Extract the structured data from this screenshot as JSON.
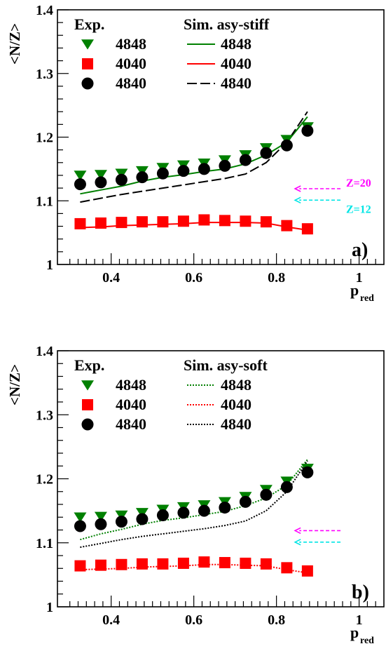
{
  "chart_data": [
    {
      "panel_label": "a)",
      "type": "scatter",
      "xlabel": "p",
      "xlabel_sub": "red",
      "ylabel": "<N/Z>",
      "xlim": [
        0.27,
        1.06
      ],
      "ylim": [
        1.0,
        1.4
      ],
      "xticks": [
        "0.4",
        "0.6",
        "0.8",
        "1"
      ],
      "yticks": [
        "1",
        "1.1",
        "1.2",
        "1.3",
        "1.4"
      ],
      "legend_exp_header": "Exp.",
      "legend_sim_header": "Sim. asy-stiff",
      "exp_series": [
        {
          "name": "4848",
          "color": "#008000",
          "marker": "triangle-down",
          "x": [
            0.325,
            0.375,
            0.425,
            0.475,
            0.525,
            0.575,
            0.625,
            0.675,
            0.725,
            0.775,
            0.825,
            0.875
          ],
          "y": [
            1.14,
            1.141,
            1.143,
            1.147,
            1.152,
            1.156,
            1.159,
            1.164,
            1.172,
            1.183,
            1.196,
            1.216
          ]
        },
        {
          "name": "4040",
          "color": "#ff0000",
          "marker": "square",
          "x": [
            0.325,
            0.375,
            0.425,
            0.475,
            0.525,
            0.575,
            0.625,
            0.675,
            0.725,
            0.775,
            0.825,
            0.875
          ],
          "y": [
            1.064,
            1.065,
            1.066,
            1.067,
            1.067,
            1.068,
            1.07,
            1.069,
            1.068,
            1.067,
            1.061,
            1.056
          ]
        },
        {
          "name": "4840",
          "color": "#000000",
          "marker": "circle",
          "x": [
            0.325,
            0.375,
            0.425,
            0.475,
            0.525,
            0.575,
            0.625,
            0.675,
            0.725,
            0.775,
            0.825,
            0.875
          ],
          "y": [
            1.126,
            1.129,
            1.133,
            1.137,
            1.143,
            1.147,
            1.15,
            1.155,
            1.164,
            1.175,
            1.187,
            1.21
          ]
        }
      ],
      "sim_series": [
        {
          "name": "4848",
          "color": "#008000",
          "dash": "",
          "x": [
            0.325,
            0.375,
            0.425,
            0.475,
            0.525,
            0.575,
            0.625,
            0.675,
            0.725,
            0.775,
            0.825,
            0.875
          ],
          "y": [
            1.111,
            1.117,
            1.123,
            1.131,
            1.137,
            1.141,
            1.146,
            1.15,
            1.158,
            1.172,
            1.192,
            1.232
          ]
        },
        {
          "name": "4040",
          "color": "#ff0000",
          "dash": "",
          "x": [
            0.325,
            0.375,
            0.425,
            0.475,
            0.525,
            0.575,
            0.625,
            0.675,
            0.725,
            0.775,
            0.825,
            0.875
          ],
          "y": [
            1.058,
            1.059,
            1.061,
            1.062,
            1.063,
            1.064,
            1.066,
            1.066,
            1.066,
            1.065,
            1.059,
            1.054
          ]
        },
        {
          "name": "4840",
          "color": "#000000",
          "dash": "14,5",
          "x": [
            0.325,
            0.375,
            0.425,
            0.475,
            0.525,
            0.575,
            0.625,
            0.675,
            0.725,
            0.775,
            0.825,
            0.875
          ],
          "y": [
            1.098,
            1.104,
            1.11,
            1.115,
            1.12,
            1.125,
            1.13,
            1.135,
            1.142,
            1.16,
            1.192,
            1.24
          ]
        }
      ],
      "arrows": [
        {
          "label": "Z=20",
          "color": "#ff00ff",
          "y": 1.119,
          "x_from": 0.955,
          "x_to": 0.845
        },
        {
          "label": "Z=12",
          "color": "#00e5e5",
          "y": 1.101,
          "x_from": 0.955,
          "x_to": 0.845
        }
      ]
    },
    {
      "panel_label": "b)",
      "type": "scatter",
      "xlabel": "p",
      "xlabel_sub": "red",
      "ylabel": "<N/Z>",
      "xlim": [
        0.27,
        1.06
      ],
      "ylim": [
        1.0,
        1.4
      ],
      "xticks": [
        "0.4",
        "0.6",
        "0.8",
        "1"
      ],
      "yticks": [
        "1",
        "1.1",
        "1.2",
        "1.3",
        "1.4"
      ],
      "legend_exp_header": "Exp.",
      "legend_sim_header": "Sim. asy-soft",
      "exp_series": [
        {
          "name": "4848",
          "color": "#008000",
          "marker": "triangle-down",
          "x": [
            0.325,
            0.375,
            0.425,
            0.475,
            0.525,
            0.575,
            0.625,
            0.675,
            0.725,
            0.775,
            0.825,
            0.875
          ],
          "y": [
            1.14,
            1.141,
            1.143,
            1.147,
            1.152,
            1.156,
            1.159,
            1.164,
            1.172,
            1.183,
            1.196,
            1.216
          ]
        },
        {
          "name": "4040",
          "color": "#ff0000",
          "marker": "square",
          "x": [
            0.325,
            0.375,
            0.425,
            0.475,
            0.525,
            0.575,
            0.625,
            0.675,
            0.725,
            0.775,
            0.825,
            0.875
          ],
          "y": [
            1.064,
            1.065,
            1.066,
            1.067,
            1.067,
            1.068,
            1.07,
            1.069,
            1.068,
            1.067,
            1.061,
            1.056
          ]
        },
        {
          "name": "4840",
          "color": "#000000",
          "marker": "circle",
          "x": [
            0.325,
            0.375,
            0.425,
            0.475,
            0.525,
            0.575,
            0.625,
            0.675,
            0.725,
            0.775,
            0.825,
            0.875
          ],
          "y": [
            1.126,
            1.129,
            1.133,
            1.137,
            1.143,
            1.147,
            1.15,
            1.155,
            1.164,
            1.175,
            1.187,
            1.21
          ]
        }
      ],
      "sim_series": [
        {
          "name": "4848",
          "color": "#008000",
          "dash": "2,2",
          "x": [
            0.325,
            0.375,
            0.425,
            0.475,
            0.525,
            0.575,
            0.625,
            0.675,
            0.725,
            0.775,
            0.825,
            0.875
          ],
          "y": [
            1.105,
            1.114,
            1.121,
            1.129,
            1.135,
            1.139,
            1.144,
            1.149,
            1.158,
            1.17,
            1.19,
            1.23
          ]
        },
        {
          "name": "4040",
          "color": "#ff0000",
          "dash": "2,2",
          "x": [
            0.325,
            0.375,
            0.425,
            0.475,
            0.525,
            0.575,
            0.625,
            0.675,
            0.725,
            0.775,
            0.825,
            0.875
          ],
          "y": [
            1.058,
            1.059,
            1.06,
            1.062,
            1.063,
            1.064,
            1.066,
            1.066,
            1.065,
            1.064,
            1.058,
            1.053
          ]
        },
        {
          "name": "4840",
          "color": "#000000",
          "dash": "2,2",
          "x": [
            0.325,
            0.375,
            0.425,
            0.475,
            0.525,
            0.575,
            0.625,
            0.675,
            0.725,
            0.775,
            0.825,
            0.875
          ],
          "y": [
            1.093,
            1.099,
            1.105,
            1.11,
            1.114,
            1.118,
            1.122,
            1.127,
            1.134,
            1.15,
            1.18,
            1.228
          ]
        }
      ],
      "arrows": [
        {
          "label": "",
          "color": "#ff00ff",
          "y": 1.119,
          "x_from": 0.955,
          "x_to": 0.845
        },
        {
          "label": "",
          "color": "#00e5e5",
          "y": 1.101,
          "x_from": 0.955,
          "x_to": 0.845
        }
      ]
    }
  ]
}
